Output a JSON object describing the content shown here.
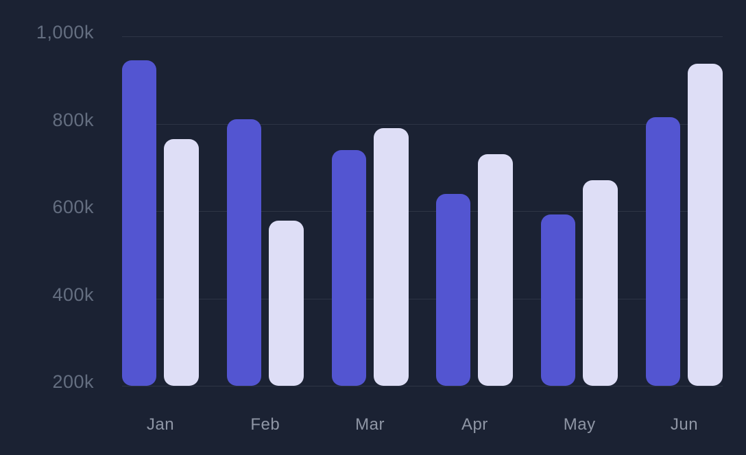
{
  "chart_data": {
    "type": "bar",
    "title": "",
    "xlabel": "",
    "ylabel": "",
    "unit": "k",
    "categories": [
      "Jan",
      "Feb",
      "Mar",
      "Apr",
      "May",
      "Jun"
    ],
    "series": [
      {
        "name": "series-1-purple",
        "color": "#5355d1",
        "values": [
          945,
          810,
          740,
          640,
          592,
          815
        ]
      },
      {
        "name": "series-2-lavender",
        "color": "#dedef6",
        "values": [
          765,
          578,
          790,
          730,
          670,
          937
        ]
      }
    ],
    "yticks": {
      "values": [
        1000,
        800,
        600,
        400,
        200
      ],
      "labels": [
        "1,000k",
        "800k",
        "600k",
        "400k",
        "200k"
      ]
    },
    "ylim": [
      200,
      1000
    ],
    "grid": true,
    "legend": false,
    "legend_position": "none"
  },
  "colors": {
    "background": "#1b2233",
    "gridline": "#2e3545",
    "y_label": "#646e80",
    "x_label": "#8f96a5"
  }
}
